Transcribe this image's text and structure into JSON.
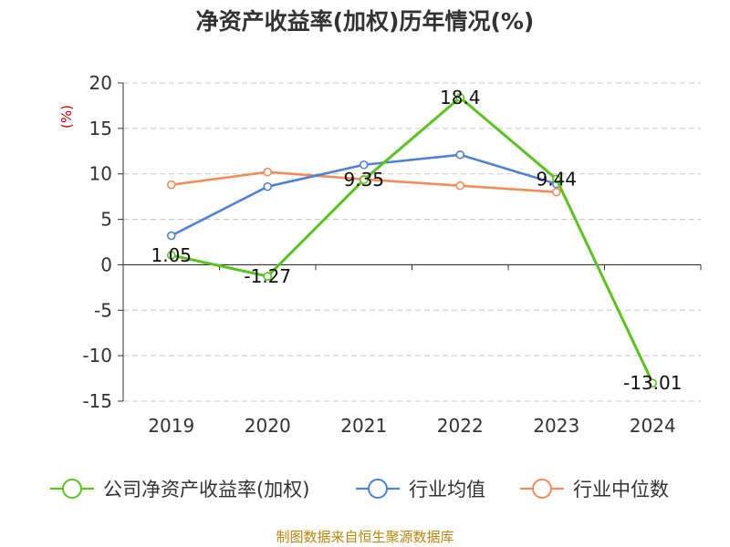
{
  "chart_data": {
    "type": "line",
    "title": "净资产收益率(加权)历年情况(%)",
    "ylabel": "(%)",
    "xlabel": "",
    "categories": [
      "2019",
      "2020",
      "2021",
      "2022",
      "2023",
      "2024"
    ],
    "ylim": [
      -15,
      20
    ],
    "yticks": [
      20,
      15,
      10,
      5,
      0,
      -5,
      -10,
      -15
    ],
    "grid": true,
    "legend_position": "bottom",
    "series": [
      {
        "name": "公司净资产收益率(加权)",
        "color": "#5ac31f",
        "values": [
          1.05,
          -1.27,
          9.35,
          18.4,
          9.44,
          -13.01
        ],
        "labels": [
          "1.05",
          "-1.27",
          "9.35",
          "18.4",
          "9.44",
          "-13.01"
        ]
      },
      {
        "name": "行业均值",
        "color": "#4f81d6",
        "values": [
          3.2,
          8.6,
          11.0,
          12.1,
          8.9,
          null
        ]
      },
      {
        "name": "行业中位数",
        "color": "#f28c5a",
        "values": [
          8.8,
          10.2,
          9.4,
          8.7,
          8.0,
          null
        ]
      }
    ],
    "source": "制图数据来自恒生聚源数据库"
  }
}
